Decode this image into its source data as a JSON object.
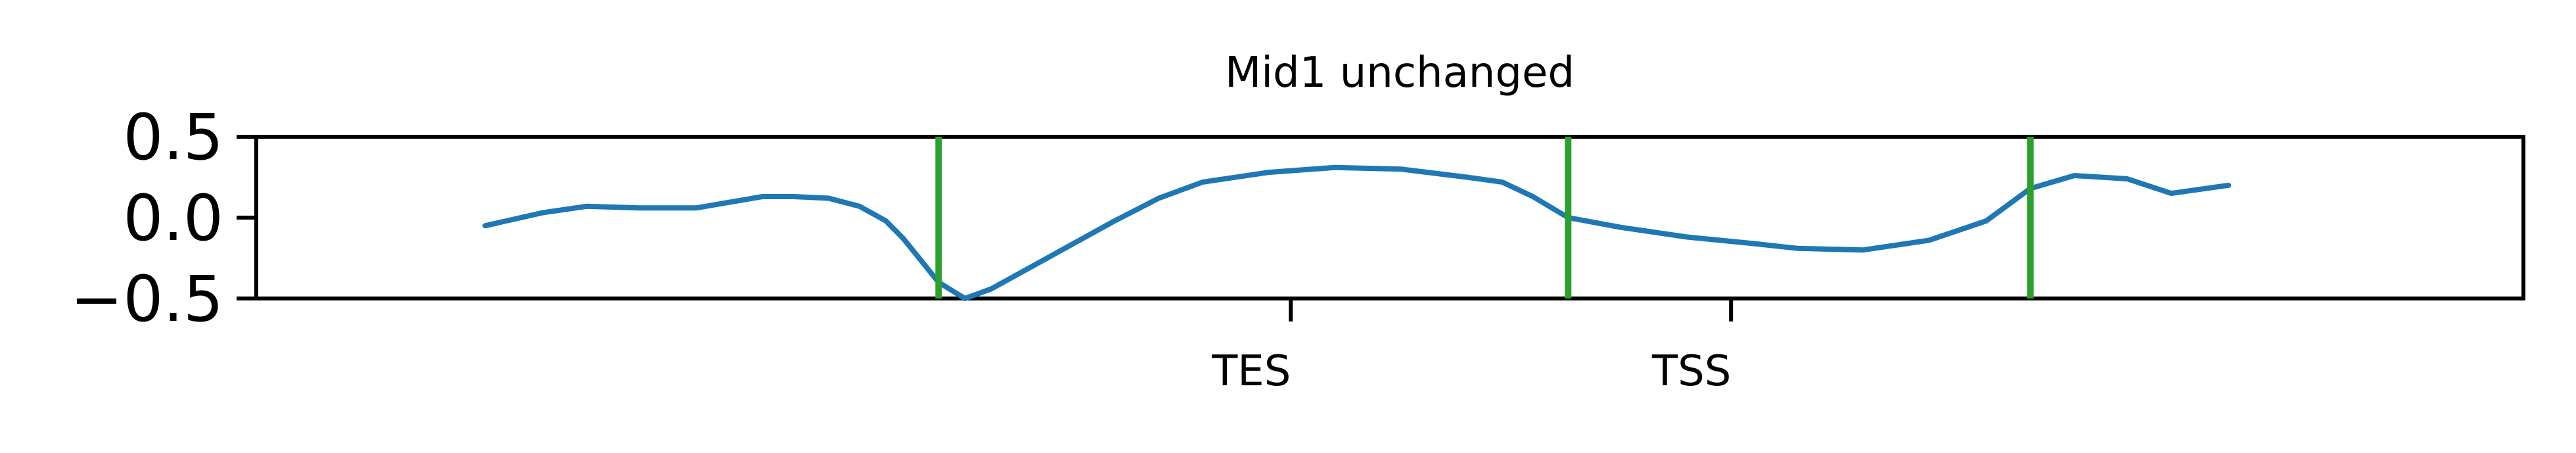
{
  "chart_data": {
    "type": "line",
    "title": "Mid1 unchanged",
    "xlabel": "",
    "ylabel": "",
    "xlim": [
      -0.75,
      4.4
    ],
    "ylim": [
      -0.5,
      0.5
    ],
    "y_ticks": [
      0.5,
      0.0,
      -0.5
    ],
    "y_tick_labels": [
      "0.5",
      "0.0",
      "−0.5"
    ],
    "x_ticks": [
      1.6,
      2.6
    ],
    "x_tick_labels": [
      "TES",
      "TSS"
    ],
    "grid": false,
    "legend": false,
    "colors": {
      "line": "#1f77b4",
      "vlines": "#2ca02c",
      "axes": "#000000"
    },
    "vertical_lines": [
      0.8,
      2.23,
      3.28
    ],
    "series": [
      {
        "x": [
          -0.23,
          -0.1,
          0.0,
          0.12,
          0.25,
          0.4,
          0.47,
          0.55,
          0.62,
          0.68,
          0.72,
          0.8,
          0.86,
          0.92,
          1.0,
          1.1,
          1.2,
          1.3,
          1.4,
          1.55,
          1.7,
          1.85,
          2.0,
          2.08,
          2.15,
          2.23,
          2.35,
          2.5,
          2.65,
          2.75,
          2.9,
          3.05,
          3.18,
          3.28,
          3.38,
          3.5,
          3.6,
          3.73
        ],
        "y": [
          -0.05,
          0.03,
          0.07,
          0.06,
          0.06,
          0.13,
          0.13,
          0.12,
          0.07,
          -0.02,
          -0.13,
          -0.4,
          -0.5,
          -0.44,
          -0.32,
          -0.17,
          -0.02,
          0.12,
          0.22,
          0.28,
          0.31,
          0.3,
          0.25,
          0.22,
          0.13,
          0.0,
          -0.06,
          -0.12,
          -0.16,
          -0.19,
          -0.2,
          -0.14,
          -0.02,
          0.18,
          0.26,
          0.24,
          0.15,
          0.2
        ]
      }
    ]
  }
}
